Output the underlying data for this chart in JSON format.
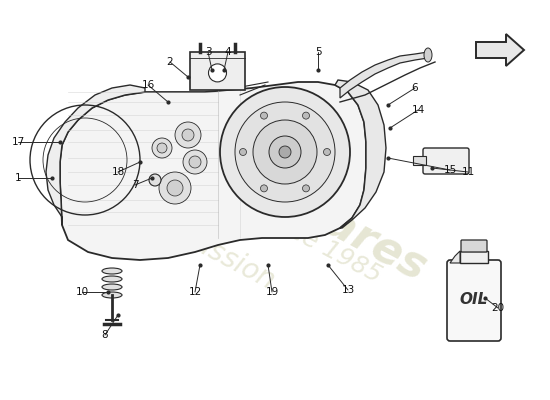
{
  "bg": "#ffffff",
  "lc": "#2a2a2a",
  "wm_color": "#c8c8a0",
  "wm_alpha": 0.45,
  "fig_w": 5.5,
  "fig_h": 4.0,
  "dpi": 100,
  "part_labels": [
    [
      1,
      52,
      222,
      18,
      222
    ],
    [
      2,
      188,
      323,
      170,
      338
    ],
    [
      3,
      212,
      330,
      208,
      348
    ],
    [
      4,
      224,
      330,
      228,
      348
    ],
    [
      5,
      318,
      330,
      318,
      348
    ],
    [
      6,
      388,
      295,
      415,
      312
    ],
    [
      7,
      152,
      222,
      135,
      215
    ],
    [
      8,
      118,
      85,
      105,
      65
    ],
    [
      10,
      108,
      108,
      82,
      108
    ],
    [
      11,
      432,
      232,
      468,
      228
    ],
    [
      12,
      200,
      135,
      195,
      108
    ],
    [
      13,
      328,
      135,
      348,
      110
    ],
    [
      14,
      390,
      272,
      418,
      290
    ],
    [
      15,
      388,
      242,
      450,
      230
    ],
    [
      16,
      168,
      298,
      148,
      315
    ],
    [
      17,
      60,
      258,
      18,
      258
    ],
    [
      18,
      140,
      238,
      118,
      228
    ],
    [
      19,
      268,
      135,
      272,
      108
    ],
    [
      20,
      485,
      102,
      498,
      92
    ]
  ]
}
